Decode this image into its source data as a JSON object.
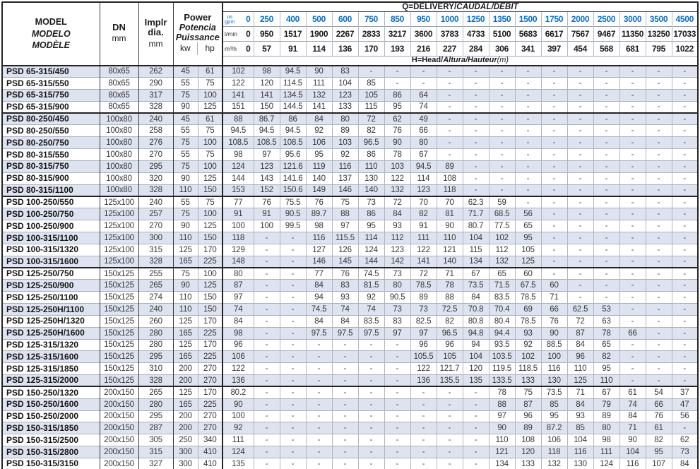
{
  "header": {
    "model_lines": [
      "MODEL",
      "MODELO",
      "MODÈLE"
    ],
    "dn_label": "DN",
    "impeller_lines": [
      "Implr",
      "dia."
    ],
    "power_lines": [
      "Power",
      "Potencia",
      "Puissance"
    ],
    "unit_mm": "mm",
    "unit_kw": "kw",
    "unit_hp": "hp",
    "delivery_title_plain": "Q=DELIVERY/",
    "delivery_title_italic": "CAUDAL/DÉBIT",
    "head_title_plain": "H=Head/",
    "head_title_italic": "Altura/Hauteur",
    "head_title_unit": "(m)",
    "flow_unit_gpm": [
      "us",
      "gpm"
    ],
    "flow_unit_lmin": "l/min",
    "flow_unit_m3h": "m³/h",
    "flow_gpm": [
      "0",
      "250",
      "400",
      "500",
      "600",
      "750",
      "850",
      "950",
      "1000",
      "1250",
      "1350",
      "1500",
      "1750",
      "2000",
      "2500",
      "3000",
      "3500",
      "4500"
    ],
    "flow_lmin": [
      "0",
      "950",
      "1517",
      "1900",
      "2267",
      "2833",
      "3217",
      "3600",
      "3783",
      "4733",
      "5100",
      "5683",
      "6617",
      "7567",
      "9467",
      "11350",
      "13250",
      "17033"
    ],
    "flow_m3h": [
      "0",
      "57",
      "91",
      "114",
      "136",
      "170",
      "193",
      "216",
      "227",
      "284",
      "306",
      "341",
      "397",
      "454",
      "568",
      "681",
      "795",
      "1022"
    ]
  },
  "colors": {
    "accent_blue": "#0b6bc0",
    "row_shade": "#dee3ef",
    "grid_dark": "#232327",
    "grid_light": "#a9b0bc"
  },
  "rows": [
    {
      "model": "PSD 65-315/450",
      "dn": "80x65",
      "dia": "262",
      "kw": "45",
      "hp": "61",
      "group_end": false,
      "heads": [
        "102",
        "98",
        "94.5",
        "90",
        "83",
        "-",
        "-",
        "-",
        "-",
        "-",
        "-",
        "-",
        "-",
        "-",
        "-",
        "-",
        "-",
        "-"
      ]
    },
    {
      "model": "PSD 65-315/550",
      "dn": "80x65",
      "dia": "290",
      "kw": "55",
      "hp": "75",
      "group_end": false,
      "heads": [
        "122",
        "120",
        "114.5",
        "111",
        "104",
        "85",
        "-",
        "-",
        "-",
        "-",
        "-",
        "-",
        "-",
        "-",
        "-",
        "-",
        "-",
        "-"
      ]
    },
    {
      "model": "PSD 65-315/750",
      "dn": "80x65",
      "dia": "317",
      "kw": "75",
      "hp": "100",
      "group_end": false,
      "heads": [
        "141",
        "141",
        "134.5",
        "132",
        "123",
        "105",
        "86",
        "64",
        "-",
        "-",
        "-",
        "-",
        "-",
        "-",
        "-",
        "-",
        "-",
        "-"
      ]
    },
    {
      "model": "PSD 65-315/900",
      "dn": "80x65",
      "dia": "328",
      "kw": "90",
      "hp": "125",
      "group_end": true,
      "heads": [
        "151",
        "150",
        "144.5",
        "141",
        "133",
        "115",
        "95",
        "74",
        "-",
        "-",
        "-",
        "-",
        "-",
        "-",
        "-",
        "-",
        "-",
        "-"
      ]
    },
    {
      "model": "PSD 80-250/450",
      "dn": "100x80",
      "dia": "240",
      "kw": "45",
      "hp": "61",
      "group_end": false,
      "heads": [
        "88",
        "86.7",
        "86",
        "84",
        "80",
        "72",
        "62",
        "49",
        "-",
        "-",
        "-",
        "-",
        "-",
        "-",
        "-",
        "-",
        "-",
        "-"
      ]
    },
    {
      "model": "PSD 80-250/550",
      "dn": "100x80",
      "dia": "258",
      "kw": "55",
      "hp": "75",
      "group_end": false,
      "heads": [
        "94.5",
        "94.5",
        "94.5",
        "92",
        "89",
        "82",
        "76",
        "66",
        "-",
        "-",
        "-",
        "-",
        "-",
        "-",
        "-",
        "-",
        "-",
        "-"
      ]
    },
    {
      "model": "PSD 80-250/750",
      "dn": "100x80",
      "dia": "276",
      "kw": "75",
      "hp": "100",
      "group_end": false,
      "heads": [
        "108.5",
        "108.5",
        "108.5",
        "106",
        "103",
        "96.5",
        "90",
        "80",
        "-",
        "-",
        "-",
        "-",
        "-",
        "-",
        "-",
        "-",
        "-",
        "-"
      ]
    },
    {
      "model": "PSD 80-315/550",
      "dn": "100x80",
      "dia": "270",
      "kw": "55",
      "hp": "75",
      "group_end": false,
      "heads": [
        "98",
        "97",
        "95.6",
        "95",
        "92",
        "86",
        "78",
        "67",
        "-",
        "-",
        "-",
        "-",
        "-",
        "-",
        "-",
        "-",
        "-",
        "-"
      ]
    },
    {
      "model": "PSD 80-315/750",
      "dn": "100x80",
      "dia": "295",
      "kw": "75",
      "hp": "100",
      "group_end": false,
      "heads": [
        "124",
        "123",
        "121.6",
        "119",
        "116",
        "110",
        "103",
        "94.5",
        "89",
        "-",
        "-",
        "-",
        "-",
        "-",
        "-",
        "-",
        "-",
        "-"
      ]
    },
    {
      "model": "PSD 80-315/900",
      "dn": "100x80",
      "dia": "320",
      "kw": "90",
      "hp": "125",
      "group_end": false,
      "heads": [
        "144",
        "143",
        "141.6",
        "140",
        "137",
        "130",
        "122",
        "114",
        "108",
        "-",
        "-",
        "-",
        "-",
        "-",
        "-",
        "-",
        "-",
        "-"
      ]
    },
    {
      "model": "PSD 80-315/1100",
      "dn": "100x80",
      "dia": "328",
      "kw": "110",
      "hp": "150",
      "group_end": true,
      "heads": [
        "153",
        "152",
        "150.6",
        "149",
        "146",
        "140",
        "132",
        "123",
        "118",
        "-",
        "-",
        "-",
        "-",
        "-",
        "-",
        "-",
        "-",
        "-"
      ]
    },
    {
      "model": "PSD 100-250/550",
      "dn": "125x100",
      "dia": "240",
      "kw": "55",
      "hp": "75",
      "group_end": false,
      "heads": [
        "77",
        "76",
        "75.5",
        "76",
        "75",
        "73",
        "72",
        "70",
        "70",
        "62.3",
        "59",
        "-",
        "-",
        "-",
        "-",
        "-",
        "-",
        "-"
      ]
    },
    {
      "model": "PSD 100-250/750",
      "dn": "125x100",
      "dia": "257",
      "kw": "75",
      "hp": "100",
      "group_end": false,
      "heads": [
        "91",
        "91",
        "90.5",
        "89.7",
        "88",
        "86",
        "84",
        "82",
        "81",
        "71.7",
        "68.5",
        "56",
        "-",
        "-",
        "-",
        "-",
        "-",
        "-"
      ]
    },
    {
      "model": "PSD 100-250/900",
      "dn": "125x100",
      "dia": "270",
      "kw": "90",
      "hp": "125",
      "group_end": false,
      "heads": [
        "100",
        "100",
        "99.5",
        "98",
        "97",
        "95",
        "93",
        "91",
        "90",
        "80.7",
        "77.5",
        "65",
        "-",
        "-",
        "-",
        "-",
        "-",
        "-"
      ]
    },
    {
      "model": "PSD 100-315/1100",
      "dn": "125x100",
      "dia": "300",
      "kw": "110",
      "hp": "150",
      "group_end": false,
      "heads": [
        "118",
        "-",
        "-",
        "116",
        "115.5",
        "114",
        "112",
        "111",
        "110",
        "104",
        "102",
        "95",
        "-",
        "-",
        "-",
        "-",
        "-",
        "-"
      ]
    },
    {
      "model": "PSD 100-315/1320",
      "dn": "125x100",
      "dia": "315",
      "kw": "125",
      "hp": "170",
      "group_end": false,
      "heads": [
        "129",
        "-",
        "-",
        "127",
        "126",
        "124",
        "123",
        "122",
        "121",
        "115",
        "112",
        "105",
        "-",
        "-",
        "-",
        "-",
        "-",
        "-"
      ]
    },
    {
      "model": "PSD 100-315/1600",
      "dn": "125x100",
      "dia": "328",
      "kw": "165",
      "hp": "225",
      "group_end": true,
      "heads": [
        "148",
        "-",
        "-",
        "146",
        "145",
        "144",
        "142",
        "141",
        "140",
        "134",
        "132",
        "125",
        "-",
        "-",
        "-",
        "-",
        "-",
        "-"
      ]
    },
    {
      "model": "PSD 125-250/750",
      "dn": "150x125",
      "dia": "255",
      "kw": "75",
      "hp": "100",
      "group_end": false,
      "heads": [
        "80",
        "-",
        "-",
        "77",
        "76",
        "74.5",
        "73",
        "72",
        "71",
        "67",
        "65",
        "60",
        "-",
        "-",
        "-",
        "-",
        "-",
        "-"
      ]
    },
    {
      "model": "PSD 125-250/900",
      "dn": "150x125",
      "dia": "265",
      "kw": "90",
      "hp": "125",
      "group_end": false,
      "heads": [
        "87",
        "-",
        "-",
        "84",
        "83",
        "81.5",
        "80",
        "78.5",
        "78",
        "73.5",
        "71.5",
        "67.5",
        "60",
        "-",
        "-",
        "-",
        "-",
        "-"
      ]
    },
    {
      "model": "PSD 125-250/1100",
      "dn": "150x125",
      "dia": "274",
      "kw": "110",
      "hp": "150",
      "group_end": false,
      "heads": [
        "97",
        "-",
        "-",
        "94",
        "93",
        "92",
        "90.5",
        "89",
        "88",
        "84",
        "83.5",
        "78.5",
        "71",
        "-",
        "-",
        "-",
        "-",
        "-"
      ]
    },
    {
      "model": "PSD 125-250H/1100",
      "dn": "150x125",
      "dia": "240",
      "kw": "110",
      "hp": "150",
      "group_end": false,
      "heads": [
        "74",
        "-",
        "-",
        "74.5",
        "74",
        "74",
        "73",
        "73",
        "72.5",
        "70.8",
        "70.4",
        "69",
        "66",
        "62.5",
        "53",
        "-",
        "-",
        "-"
      ]
    },
    {
      "model": "PSD 125-250H/1320",
      "dn": "150x125",
      "dia": "260",
      "kw": "125",
      "hp": "170",
      "group_end": false,
      "heads": [
        "84",
        "-",
        "-",
        "84",
        "84",
        "83.5",
        "83",
        "82.5",
        "82",
        "80.8",
        "80.4",
        "78.5",
        "76",
        "72",
        "63",
        "-",
        "-",
        "-"
      ]
    },
    {
      "model": "PSD 125-250H/1600",
      "dn": "150x125",
      "dia": "280",
      "kw": "165",
      "hp": "225",
      "group_end": false,
      "heads": [
        "98",
        "-",
        "-",
        "97.5",
        "97.5",
        "97.5",
        "97",
        "97",
        "96.5",
        "94.8",
        "94.4",
        "93",
        "90",
        "87",
        "78",
        "66",
        "-",
        "-"
      ]
    },
    {
      "model": "PSD 125-315/1320",
      "dn": "150x125",
      "dia": "280",
      "kw": "125",
      "hp": "170",
      "group_end": false,
      "heads": [
        "96",
        "-",
        "-",
        "-",
        "-",
        "-",
        "-",
        "96",
        "96",
        "94",
        "93.5",
        "92",
        "88.5",
        "84",
        "65",
        "-",
        "-",
        "-"
      ]
    },
    {
      "model": "PSD 125-315/1600",
      "dn": "150x125",
      "dia": "295",
      "kw": "165",
      "hp": "225",
      "group_end": false,
      "heads": [
        "106",
        "-",
        "-",
        "-",
        "-",
        "-",
        "-",
        "105.5",
        "105",
        "104",
        "103.5",
        "102",
        "100",
        "96",
        "82",
        "-",
        "-",
        "-"
      ]
    },
    {
      "model": "PSD 125-315/1850",
      "dn": "150x125",
      "dia": "310",
      "kw": "200",
      "hp": "270",
      "group_end": false,
      "heads": [
        "122",
        "-",
        "-",
        "-",
        "-",
        "-",
        "-",
        "122",
        "121.7",
        "120",
        "119.5",
        "118.5",
        "116",
        "110",
        "95",
        "-",
        "-",
        "-"
      ]
    },
    {
      "model": "PSD 125-315/2000",
      "dn": "150x125",
      "dia": "328",
      "kw": "200",
      "hp": "270",
      "group_end": true,
      "heads": [
        "136",
        "-",
        "-",
        "-",
        "-",
        "-",
        "-",
        "136",
        "135.5",
        "135",
        "133.5",
        "133",
        "130",
        "125",
        "110",
        "-",
        "-",
        "-"
      ]
    },
    {
      "model": "PSD 150-250/1320",
      "dn": "200x150",
      "dia": "265",
      "kw": "125",
      "hp": "170",
      "group_end": false,
      "heads": [
        "80.2",
        "-",
        "-",
        "-",
        "-",
        "-",
        "-",
        "-",
        "-",
        "-",
        "78",
        "75",
        "73.5",
        "71",
        "67",
        "61",
        "54",
        "37"
      ]
    },
    {
      "model": "PSD 150-250/1600",
      "dn": "200x150",
      "dia": "280",
      "kw": "165",
      "hp": "225",
      "group_end": false,
      "heads": [
        "90",
        "-",
        "-",
        "-",
        "-",
        "-",
        "-",
        "-",
        "-",
        "-",
        "88",
        "87",
        "85",
        "84",
        "79",
        "74",
        "66",
        "47"
      ]
    },
    {
      "model": "PSD 150-250/2000",
      "dn": "200x150",
      "dia": "295",
      "kw": "200",
      "hp": "270",
      "group_end": false,
      "heads": [
        "100",
        "-",
        "-",
        "-",
        "-",
        "-",
        "-",
        "-",
        "-",
        "-",
        "97",
        "96",
        "95",
        "93",
        "89",
        "84",
        "76",
        "56"
      ]
    },
    {
      "model": "PSD 150-315/1850",
      "dn": "200x150",
      "dia": "287",
      "kw": "200",
      "hp": "270",
      "group_end": false,
      "heads": [
        "92",
        "-",
        "-",
        "-",
        "-",
        "-",
        "-",
        "-",
        "-",
        "-",
        "90",
        "89",
        "87.2",
        "85",
        "80",
        "71",
        "61",
        "-"
      ]
    },
    {
      "model": "PSD 150-315/2500",
      "dn": "200x150",
      "dia": "305",
      "kw": "250",
      "hp": "340",
      "group_end": false,
      "heads": [
        "111",
        "-",
        "-",
        "-",
        "-",
        "-",
        "-",
        "-",
        "-",
        "-",
        "110",
        "108",
        "106",
        "104",
        "98",
        "90",
        "82",
        "62"
      ]
    },
    {
      "model": "PSD 150-315/2800",
      "dn": "200x150",
      "dia": "315",
      "kw": "300",
      "hp": "410",
      "group_end": false,
      "heads": [
        "124",
        "-",
        "-",
        "-",
        "-",
        "-",
        "-",
        "-",
        "-",
        "-",
        "121",
        "120",
        "118",
        "116",
        "111",
        "104",
        "95",
        "73"
      ]
    },
    {
      "model": "PSD 150-315/3150",
      "dn": "200x150",
      "dia": "327",
      "kw": "300",
      "hp": "410",
      "group_end": false,
      "heads": [
        "135",
        "-",
        "-",
        "-",
        "-",
        "-",
        "-",
        "-",
        "-",
        "-",
        "134",
        "133",
        "132",
        "130",
        "124",
        "116",
        "107",
        "84"
      ]
    }
  ]
}
